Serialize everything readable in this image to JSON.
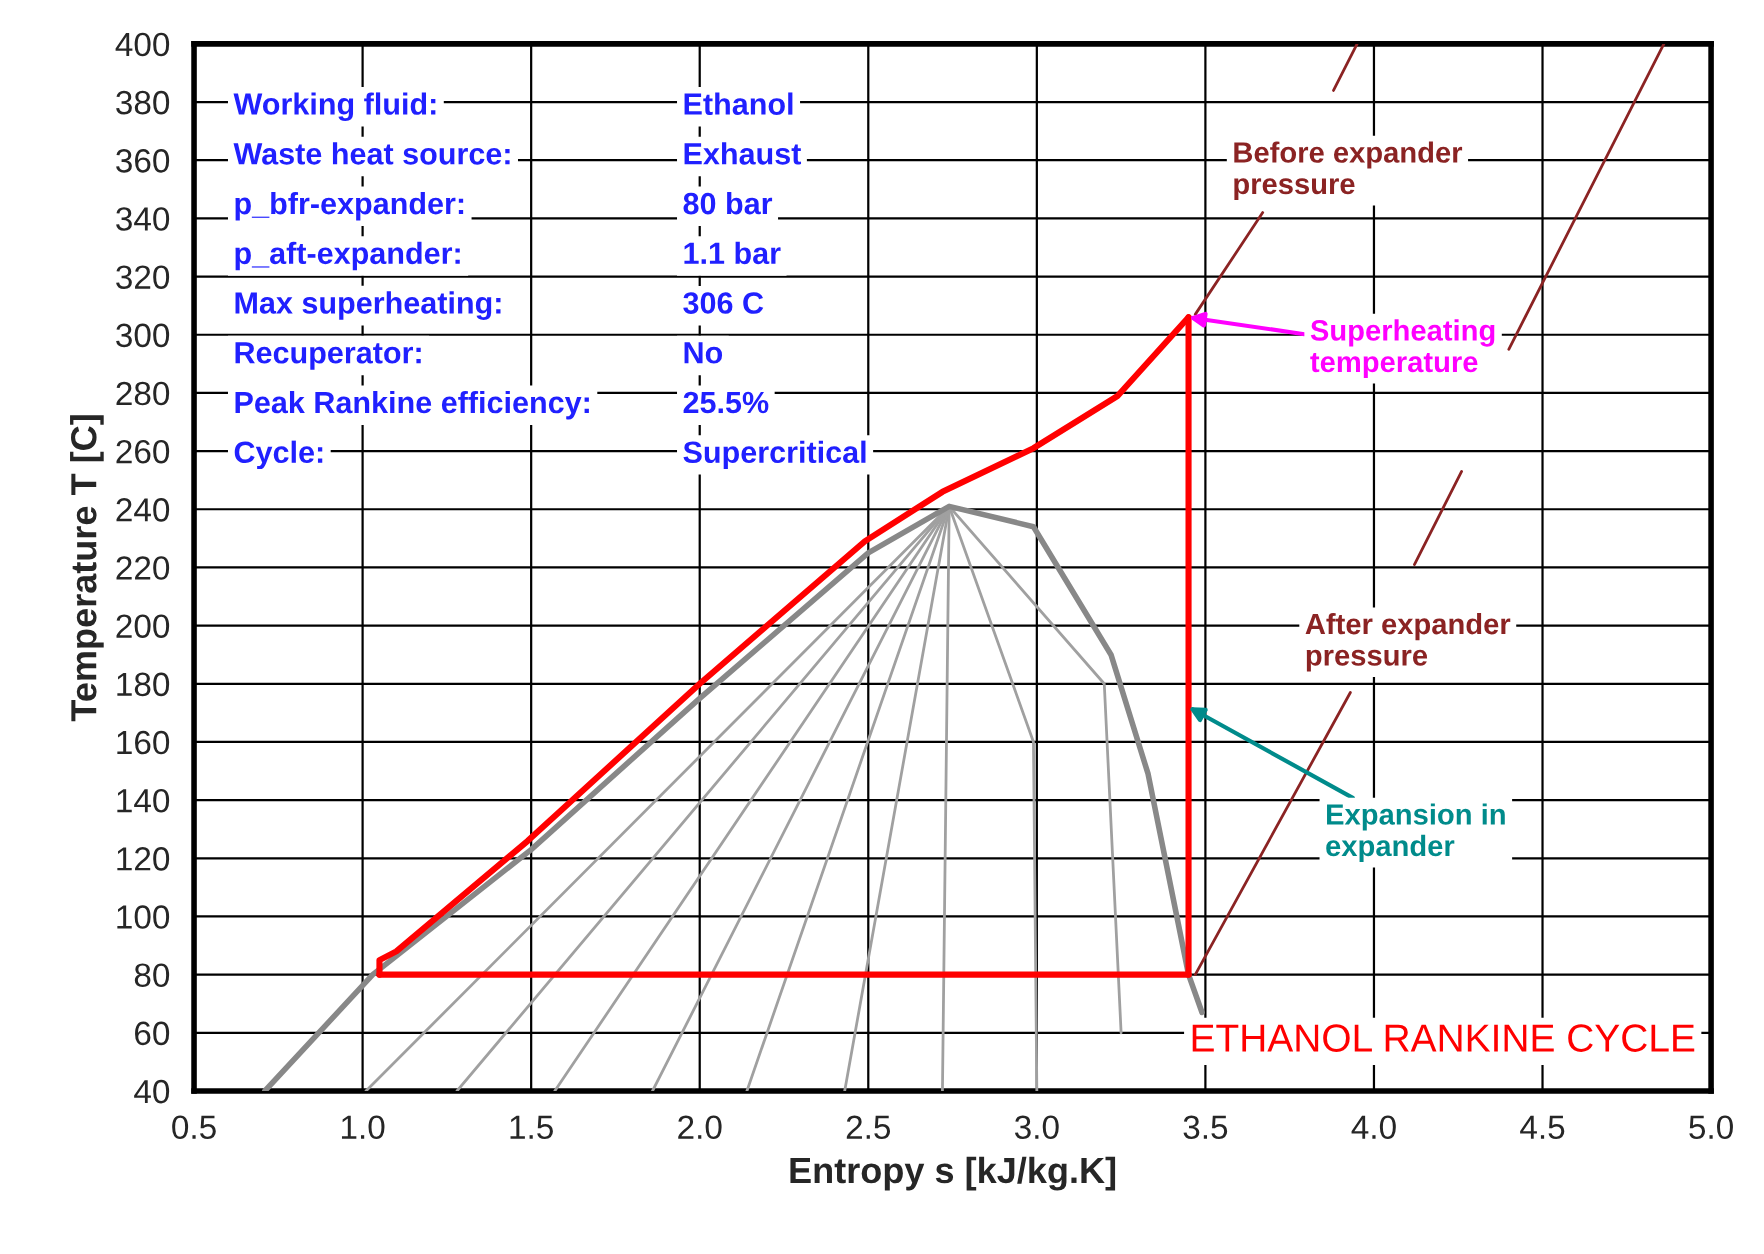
{
  "chart_data": {
    "type": "line",
    "xlabel": "Entropy s [kJ/kg.K]",
    "ylabel": "Temperature T [C]",
    "xlim": [
      0.5,
      5.0
    ],
    "ylim": [
      40,
      400
    ],
    "xticks": [
      0.5,
      {
        "value": 1,
        "label": "1.0"
      },
      1.5,
      {
        "value": 2,
        "label": "2.0"
      },
      2.5,
      {
        "value": 3,
        "label": "3.0"
      },
      3.5,
      {
        "value": 4,
        "label": "4.0"
      },
      4.5,
      {
        "value": 5,
        "label": "5.0"
      }
    ],
    "yticks": [
      40,
      60,
      80,
      100,
      120,
      140,
      160,
      180,
      200,
      220,
      240,
      260,
      280,
      300,
      320,
      340,
      360,
      380,
      400
    ],
    "grid": true,
    "legend": false,
    "marker": "none",
    "line_style": "solid",
    "series": [
      {
        "color": "#a0a0a0",
        "x": [
          1.01,
          2.74
        ],
        "values": [
          40,
          241
        ]
      },
      {
        "color": "#a0a0a0",
        "x": [
          1.28,
          2.74
        ],
        "values": [
          40,
          241
        ]
      },
      {
        "color": "#a0a0a0",
        "x": [
          1.57,
          2.74
        ],
        "values": [
          40,
          241
        ]
      },
      {
        "color": "#a0a0a0",
        "x": [
          1.86,
          2.74
        ],
        "values": [
          40,
          241
        ]
      },
      {
        "color": "#a0a0a0",
        "x": [
          2.14,
          2.74
        ],
        "values": [
          40,
          241
        ]
      },
      {
        "color": "#a0a0a0",
        "x": [
          2.43,
          2.74
        ],
        "values": [
          40,
          241
        ]
      },
      {
        "color": "#a0a0a0",
        "x": [
          2.72,
          2.74
        ],
        "values": [
          40,
          241
        ]
      },
      {
        "color": "#a0a0a0",
        "x": [
          3.0,
          2.99,
          2.74
        ],
        "values": [
          40,
          160,
          241
        ]
      },
      {
        "color": "#a0a0a0",
        "x": [
          3.25,
          3.2,
          2.74
        ],
        "values": [
          60,
          180,
          241
        ]
      },
      {
        "color": "#888888",
        "x": [
          0.71,
          1.03,
          1.5,
          2.0,
          2.5,
          2.74,
          2.99,
          3.22,
          3.33,
          3.45,
          3.49
        ],
        "values": [
          40,
          80,
          123,
          175,
          225,
          241,
          234,
          190,
          149,
          80,
          67
        ]
      },
      {
        "color": "#8b2323",
        "x": [
          3.47,
          3.67,
          null,
          3.88,
          3.95
        ],
        "values": [
          307,
          342,
          null,
          384,
          400
        ]
      },
      {
        "color": "#8b2323",
        "x": [
          3.47,
          3.93,
          null,
          4.12,
          4.26,
          null,
          4.4,
          4.86
        ],
        "values": [
          80,
          177,
          null,
          221,
          253,
          null,
          295,
          400
        ]
      },
      {
        "color": "#ff0000",
        "x": [
          1.05,
          3.45
        ],
        "values": [
          80,
          80
        ]
      },
      {
        "color": "#ff0000",
        "x": [
          3.45,
          3.45
        ],
        "values": [
          80,
          306
        ]
      },
      {
        "color": "#ff0000",
        "x": [
          1.05,
          1.05,
          1.1,
          1.49,
          2.0,
          2.49,
          2.72,
          2.99,
          3.24,
          3.45
        ],
        "values": [
          80,
          85,
          88,
          126,
          180,
          229,
          246,
          261,
          279,
          306
        ]
      }
    ],
    "annotations": [
      "Working fluid:",
      "Ethanol",
      "Waste heat source:",
      "Exhaust",
      "p_bfr-expander:",
      "80 bar",
      "p_aft-expander:",
      "1.1 bar",
      "Max superheating:",
      "306 C",
      "Recuperator:",
      "No",
      "Peak Rankine efficiency:",
      "25.5%",
      "Cycle:",
      "Supercritical",
      {
        "text": "Before expander\npressure",
        "x": 3.67,
        "y": 342
      },
      {
        "text": "Superheating\ntemperature",
        "x": 3.45,
        "y": 306
      },
      {
        "text": "After expander\npressure",
        "x": 3.93,
        "y": 177
      },
      {
        "text": "Expansion in\nexpander",
        "x": 3.45,
        "y": 172
      },
      "ETHANOL RANKINE CYCLE"
    ]
  }
}
